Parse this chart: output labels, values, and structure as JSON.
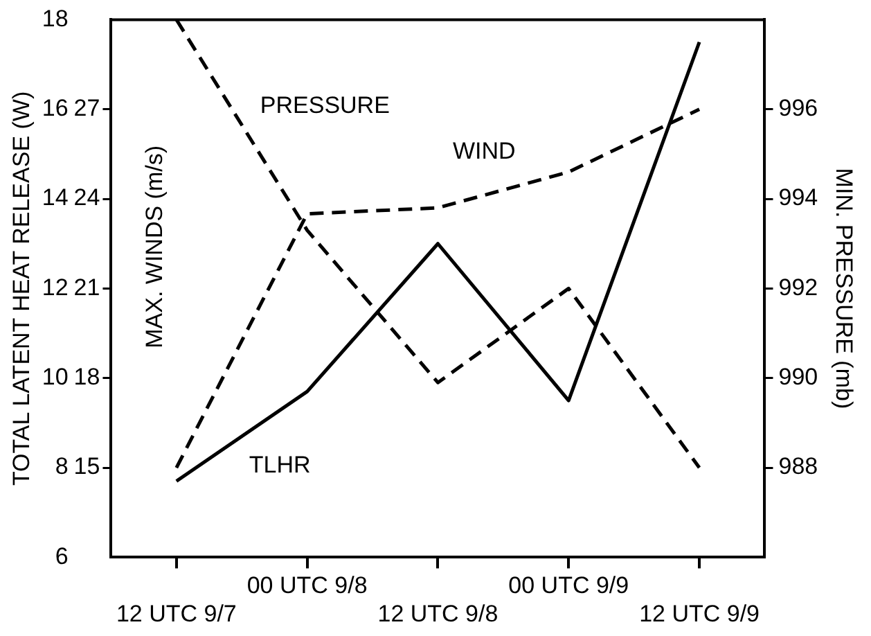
{
  "chart_data": {
    "type": "line",
    "ylabel": "TOTAL LATENT HEAT RELEASE (W)",
    "y3label": "MAX. WINDS (m/s)",
    "y2label": "MIN. PRESSURE (mb)",
    "categories": [
      "12 UTC 9/7",
      "00 UTC 9/8",
      "12 UTC 9/8",
      "00 UTC 9/9",
      "12 UTC 9/9"
    ],
    "series": [
      {
        "name": "TLHR",
        "color": "#000000",
        "line_style": "solid",
        "values": [
          7.7,
          9.7,
          13.0,
          9.5,
          17.5
        ]
      },
      {
        "name": "WIND",
        "color": "#000000",
        "line_style": "dashed",
        "axis": "y3",
        "values": [
          15,
          23.5,
          23.7,
          24.9,
          27
        ]
      },
      {
        "name": "PRESSURE",
        "color": "#000000",
        "line_style": "dashed",
        "axis": "y2",
        "values": [
          998,
          993.3,
          989.9,
          992,
          988
        ]
      }
    ],
    "ylim": [
      6,
      18
    ],
    "yticks": [
      6,
      8,
      10,
      12,
      14,
      16,
      18
    ],
    "y3lim": [
      12,
      30
    ],
    "y3ticks": [
      15,
      18,
      21,
      24,
      27
    ],
    "y2lim": [
      986,
      998
    ],
    "y2ticks": [
      988,
      990,
      992,
      994,
      996
    ],
    "grid": false,
    "legend": false,
    "marker": "none"
  }
}
